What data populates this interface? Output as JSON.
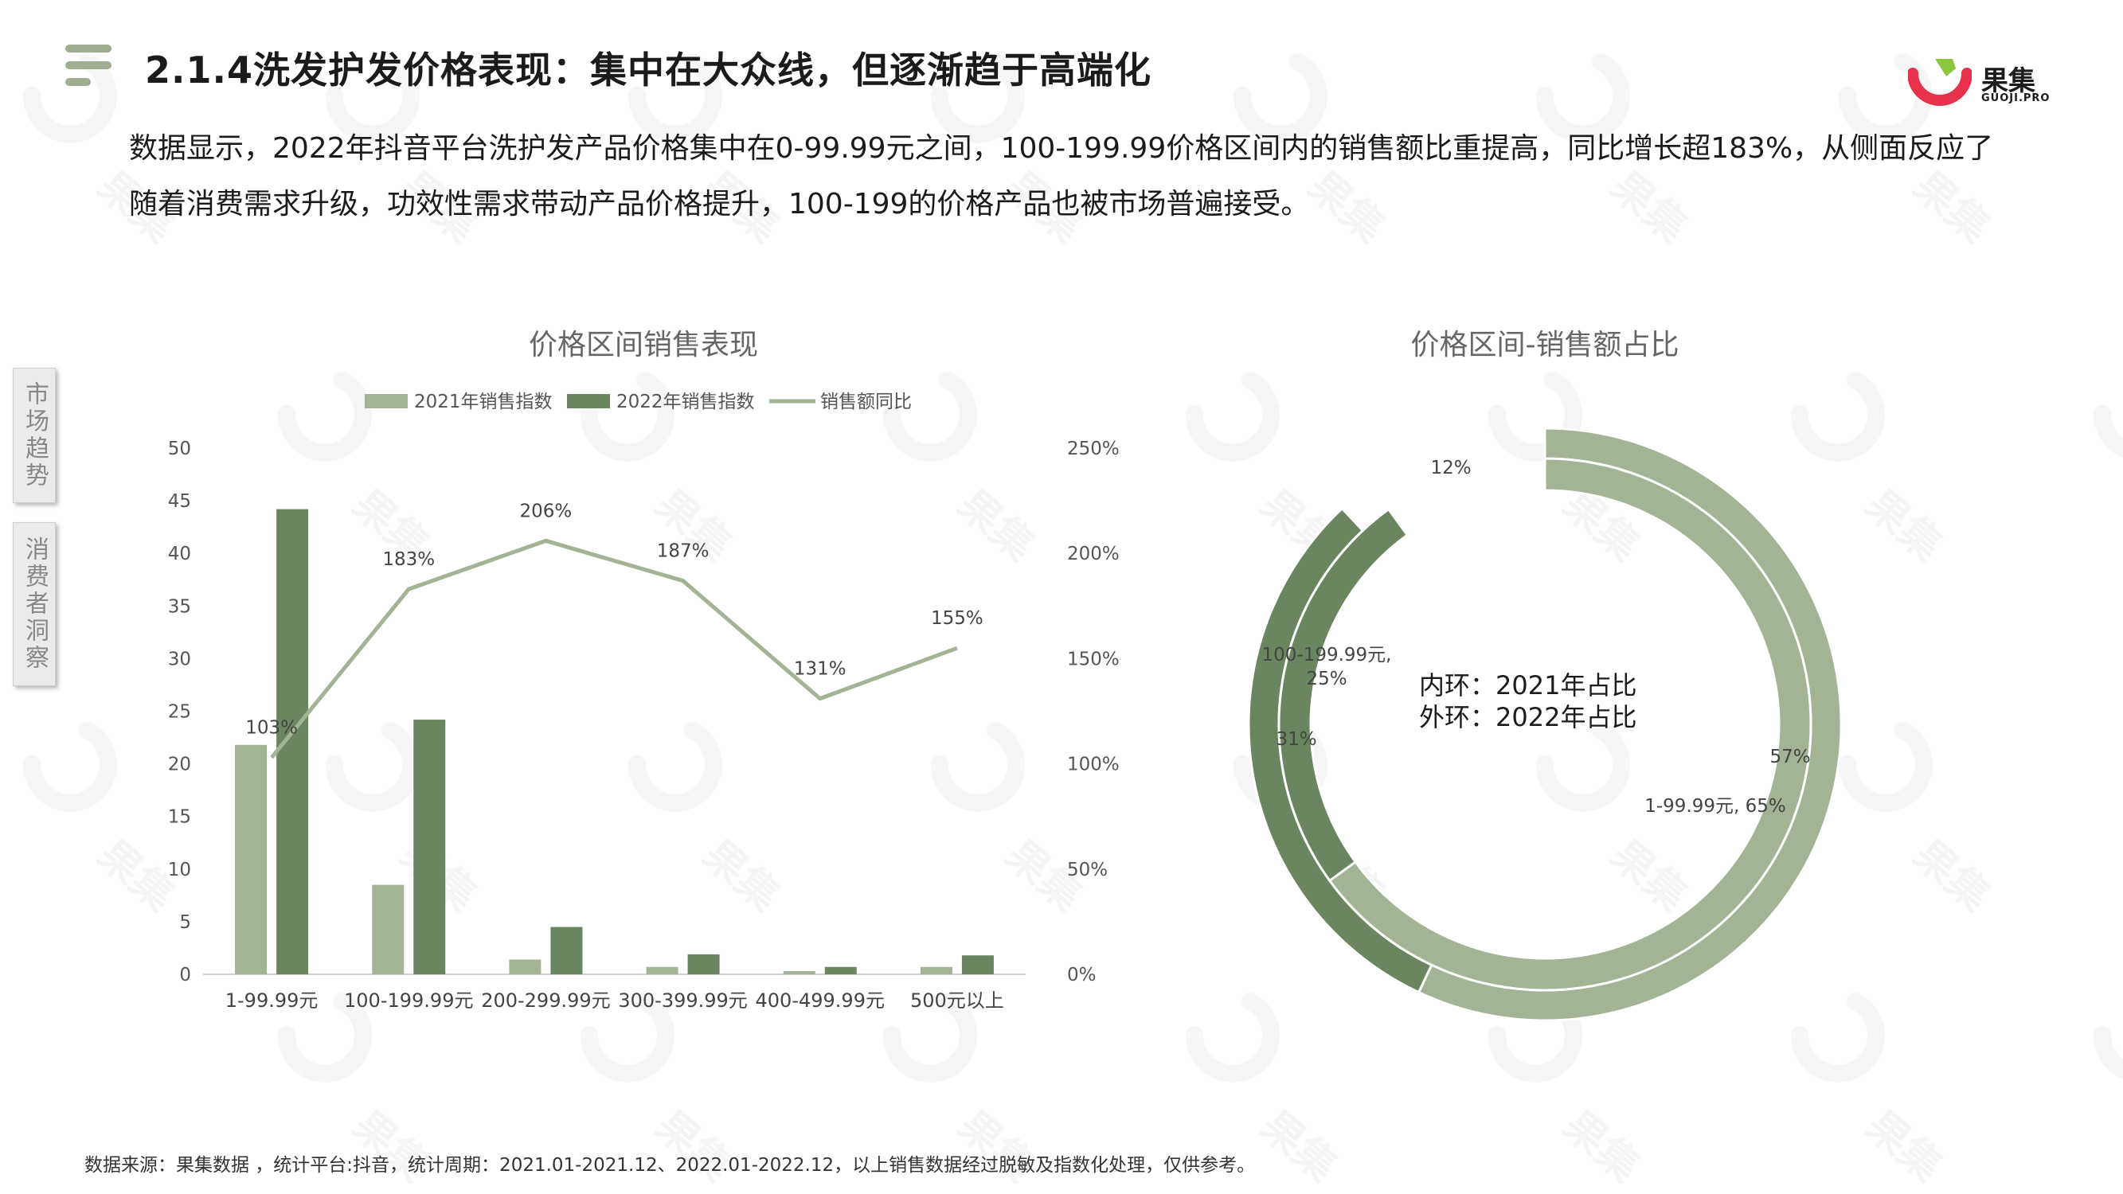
{
  "header": {
    "title": "2.1.4洗发护发价格表现：集中在大众线，但逐渐趋于高端化",
    "logo_text": "果集",
    "logo_sub": "GUOJI.PRO"
  },
  "intro_text": "数据显示，2022年抖音平台洗护发产品价格集中在0-99.99元之间，100-199.99价格区间内的销售额比重提高，同比增长超183%，从侧面反应了随着消费需求升级，功效性需求带动产品价格提升，100-199的价格产品也被市场普遍接受。",
  "side_tabs": [
    "市场趋势",
    "消费者洞察"
  ],
  "footnote": "数据来源：果集数据 ，统计平台:抖音，统计周期：2021.01-2021.12、2022.01-2022.12，以上销售数据经过脱敏及指数化处理，仅供参考。",
  "watermark_text": "果集",
  "colors": {
    "series_2021": "#a3b396",
    "series_2022": "#6b8560",
    "line": "#a3b396",
    "icon": "#9fae93",
    "logo_red": "#e8324b",
    "logo_green": "#8cc63f"
  },
  "chart_data": [
    {
      "type": "bar",
      "title": "价格区间销售表现",
      "categories": [
        "1-99.99元",
        "100-199.99元",
        "200-299.99元",
        "300-399.99元",
        "400-499.99元",
        "500元以上"
      ],
      "series": [
        {
          "name": "2021年销售指数",
          "type": "bar",
          "axis": "left",
          "values": [
            21.8,
            8.5,
            1.4,
            0.7,
            0.3,
            0.7
          ]
        },
        {
          "name": "2022年销售指数",
          "type": "bar",
          "axis": "left",
          "values": [
            44.2,
            24.2,
            4.5,
            1.9,
            0.7,
            1.8
          ]
        },
        {
          "name": "销售额同比",
          "type": "line",
          "axis": "right",
          "values": [
            103,
            183,
            206,
            187,
            131,
            155
          ],
          "labels": [
            "103%",
            "183%",
            "206%",
            "187%",
            "131%",
            "155%"
          ]
        }
      ],
      "y_left": {
        "min": 0,
        "max": 50,
        "step": 5,
        "ticks": [
          "0",
          "5",
          "10",
          "15",
          "20",
          "25",
          "30",
          "35",
          "40",
          "45",
          "50"
        ]
      },
      "y_right": {
        "min": 0,
        "max": 250,
        "step": 50,
        "ticks": [
          "0%",
          "50%",
          "100%",
          "150%",
          "200%",
          "250%"
        ]
      },
      "legend": {
        "position": "top"
      },
      "grid": false
    },
    {
      "type": "pie",
      "variant": "double-ring-donut",
      "title": "价格区间-销售额占比",
      "center_lines": [
        "内环：2021年占比",
        "外环：2022年占比"
      ],
      "categories": [
        "1-99.99元",
        "100-199.99元",
        "other"
      ],
      "outer_ring": {
        "name": "2022年占比",
        "values": [
          57,
          31,
          12
        ],
        "labels": [
          "57%",
          "31%",
          "12%"
        ]
      },
      "inner_ring": {
        "name": "2021年占比",
        "values": [
          65,
          25,
          10
        ],
        "labels": [
          "1-99.99元, 65%",
          "100-199.99元, 25%",
          ""
        ]
      }
    }
  ]
}
